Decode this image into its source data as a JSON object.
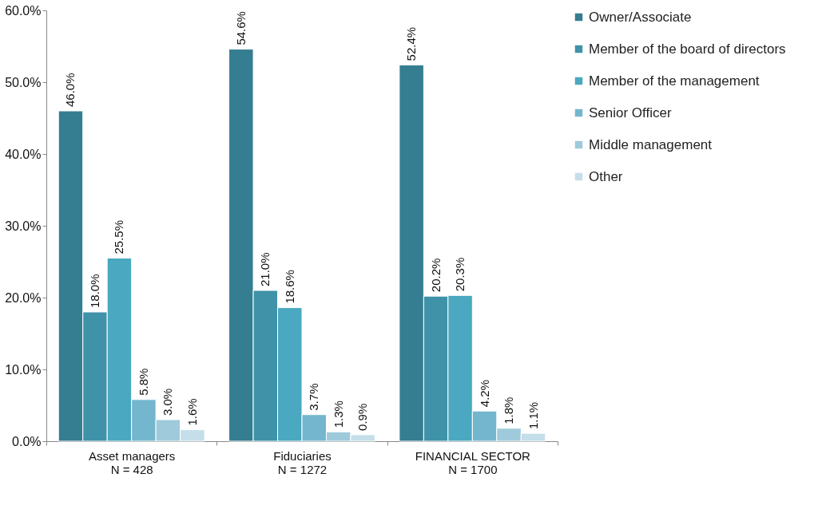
{
  "chart_data": {
    "type": "bar",
    "categories": [
      "Asset managers\nN = 428",
      "Fiduciaries\nN = 1272",
      "FINANCIAL SECTOR\nN = 1700"
    ],
    "series": [
      {
        "name": "Owner/Associate",
        "color": "#357d91",
        "values": [
          46.0,
          54.6,
          52.4
        ],
        "value_labels": [
          "46.0%",
          "54.6%",
          "52.4%"
        ]
      },
      {
        "name": "Member of the board of directors",
        "color": "#3f92a8",
        "values": [
          18.0,
          21.0,
          20.2
        ],
        "value_labels": [
          "18.0%",
          "21.0%",
          "20.2%"
        ]
      },
      {
        "name": "Member of the management",
        "color": "#4aa8c0",
        "values": [
          25.5,
          18.6,
          20.3
        ],
        "value_labels": [
          "25.5%",
          "18.6%",
          "20.3%"
        ]
      },
      {
        "name": "Senior Officer",
        "color": "#74b6ce",
        "values": [
          5.8,
          3.7,
          4.2
        ],
        "value_labels": [
          "5.8%",
          "3.7%",
          "4.2%"
        ]
      },
      {
        "name": "Middle management",
        "color": "#9ecadb",
        "values": [
          3.0,
          1.3,
          1.8
        ],
        "value_labels": [
          "3.0%",
          "1.3%",
          "1.8%"
        ]
      },
      {
        "name": "Other",
        "color": "#c4dfe9",
        "values": [
          1.6,
          0.9,
          1.1
        ],
        "value_labels": [
          "1.6%",
          "0.9%",
          "1.1%"
        ]
      }
    ],
    "ylim": [
      0,
      60
    ],
    "yticks": [
      {
        "value": 0,
        "label": "0.0%"
      },
      {
        "value": 10,
        "label": "10.0%"
      },
      {
        "value": 20,
        "label": "20.0%"
      },
      {
        "value": 30,
        "label": "30.0%"
      },
      {
        "value": 40,
        "label": "40.0%"
      },
      {
        "value": 50,
        "label": "50.0%"
      },
      {
        "value": 60,
        "label": "60.0%"
      }
    ],
    "grid": false,
    "legend": "top right"
  }
}
